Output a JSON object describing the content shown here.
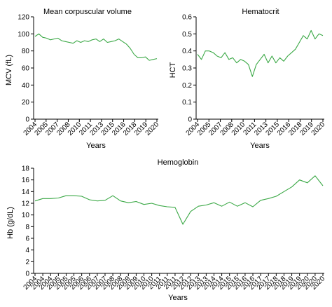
{
  "chart_data": [
    {
      "type": "line",
      "title": "Mean corpuscular volume",
      "xlabel": "Years",
      "ylabel": "MCV (fL)",
      "ylim": [
        0,
        120
      ],
      "yticks": [
        "0",
        "20",
        "40",
        "60",
        "80",
        "100",
        "120"
      ],
      "xticks": [
        "2004",
        "2005",
        "2007",
        "2008",
        "2010",
        "2011",
        "2013",
        "2015",
        "2016",
        "2018",
        "2019",
        "2020"
      ],
      "color": "#3aa845",
      "series": [
        {
          "x": [
            0.0,
            0.5,
            1.0,
            1.5,
            2.0,
            2.5,
            3.0,
            3.5,
            4.0,
            4.5,
            5.0,
            5.5,
            6.0,
            6.5,
            7.0,
            7.5,
            8.0,
            8.5,
            9.0,
            9.5,
            10.0,
            10.5,
            11.0,
            11.5,
            12.0,
            12.5,
            13.0,
            13.5,
            14.0,
            14.5,
            15.0,
            15.5,
            16.0
          ],
          "values": [
            97,
            100,
            96,
            95,
            93,
            94,
            95,
            92,
            91,
            90,
            89,
            92,
            90,
            92,
            91,
            93,
            94,
            91,
            94,
            90,
            91,
            92,
            94,
            91,
            88,
            83,
            76,
            72,
            72,
            73,
            69,
            70,
            71
          ]
        }
      ]
    },
    {
      "type": "line",
      "title": "Hematocrit",
      "xlabel": "Years",
      "ylabel": "HCT",
      "ylim": [
        0,
        0.6
      ],
      "yticks": [
        "0",
        "0.1",
        "0.2",
        "0.3",
        "0.4",
        "0.5",
        "0.6"
      ],
      "xticks": [
        "2004",
        "2005",
        "2007",
        "2008",
        "2010",
        "2011",
        "2013",
        "2015",
        "2016",
        "2018",
        "2019",
        "2020"
      ],
      "color": "#3aa845",
      "series": [
        {
          "x": [
            0.0,
            0.5,
            1.0,
            1.5,
            2.0,
            2.5,
            3.0,
            3.5,
            4.0,
            4.5,
            5.0,
            5.5,
            6.0,
            6.5,
            7.0,
            7.5,
            8.0,
            8.5,
            9.0,
            9.5,
            10.0,
            10.5,
            11.0,
            11.5,
            12.0,
            12.5,
            13.0,
            13.5,
            14.0,
            14.5,
            15.0,
            15.5,
            16.0
          ],
          "values": [
            0.38,
            0.35,
            0.4,
            0.4,
            0.39,
            0.37,
            0.36,
            0.39,
            0.35,
            0.36,
            0.33,
            0.35,
            0.34,
            0.32,
            0.25,
            0.32,
            0.35,
            0.38,
            0.33,
            0.37,
            0.33,
            0.36,
            0.34,
            0.37,
            0.39,
            0.41,
            0.45,
            0.49,
            0.47,
            0.52,
            0.47,
            0.5,
            0.49
          ]
        }
      ]
    },
    {
      "type": "line",
      "title": "Hemoglobin",
      "xlabel": "Years",
      "ylabel": "Hb (g/dL)",
      "ylim": [
        0,
        18
      ],
      "yticks": [
        "0",
        "2",
        "4",
        "6",
        "8",
        "10",
        "12",
        "14",
        "16",
        "18"
      ],
      "xticks": [
        "2004",
        "2004",
        "2004",
        "2005",
        "2005",
        "2005",
        "2006",
        "2006",
        "2007",
        "2007",
        "2008",
        "2008",
        "2009",
        "2009",
        "2010",
        "2010",
        "2011",
        "2011",
        "2011",
        "2012",
        "2012",
        "2013",
        "2013",
        "2014",
        "2014",
        "2015",
        "2015",
        "2016",
        "2016",
        "2017",
        "2017",
        "2018",
        "2018",
        "2019",
        "2019",
        "2020",
        "2020",
        "2020"
      ],
      "color": "#3aa845",
      "series": [
        {
          "x": [
            0,
            1,
            2,
            3,
            4,
            5,
            6,
            7,
            8,
            9,
            10,
            11,
            12,
            13,
            14,
            15,
            16,
            17,
            18,
            19,
            20,
            21,
            22,
            23,
            24,
            25,
            26,
            27,
            28,
            29,
            30,
            31,
            32,
            33,
            34,
            35,
            36,
            37
          ],
          "values": [
            12.4,
            12.8,
            12.8,
            12.9,
            13.3,
            13.3,
            13.2,
            12.6,
            12.4,
            12.5,
            13.3,
            12.4,
            12.1,
            12.3,
            11.8,
            12.0,
            11.6,
            11.4,
            11.3,
            8.4,
            10.6,
            11.5,
            11.7,
            12.1,
            11.5,
            12.2,
            11.5,
            12.1,
            11.4,
            12.5,
            12.8,
            13.2,
            14.0,
            14.8,
            16.0,
            15.5,
            16.7,
            15.0
          ]
        }
      ]
    }
  ]
}
